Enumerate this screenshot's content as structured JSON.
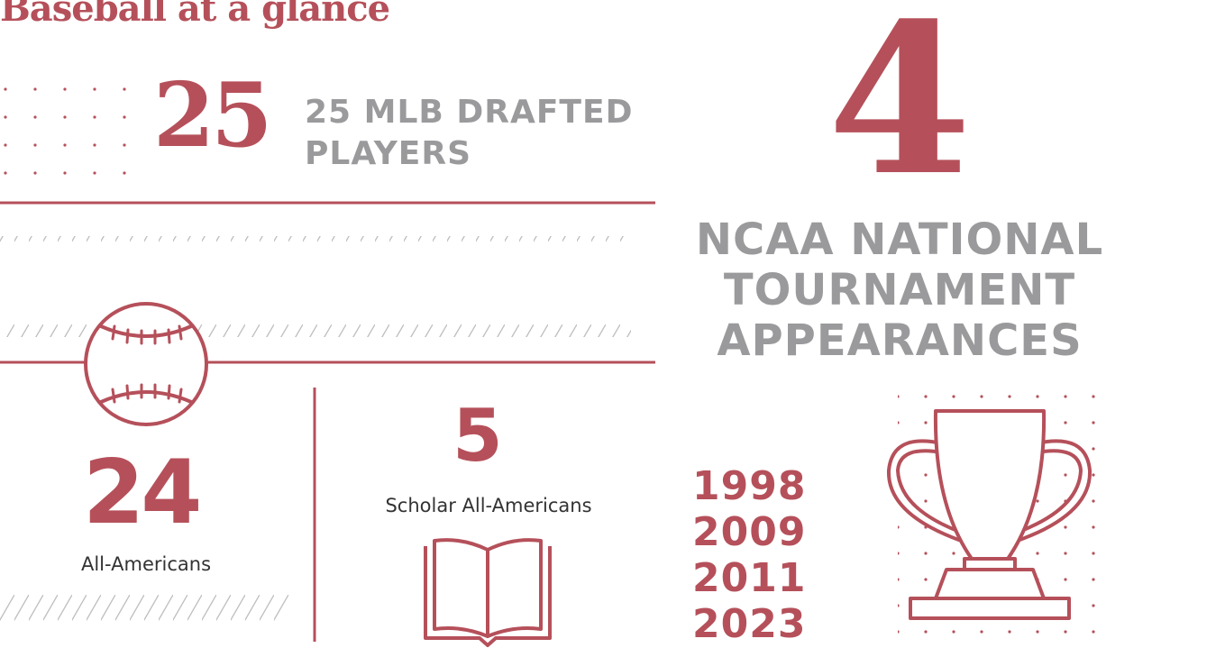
{
  "title": "Baseball at a glance",
  "stats": {
    "drafted": {
      "number": "25",
      "label_line1": "25 MLB DRAFTED",
      "label_line2": "PLAYERS"
    },
    "ncaa": {
      "number": "4",
      "label_line1": "NCAA NATIONAL",
      "label_line2": "TOURNAMENT",
      "label_line3": "APPEARANCES"
    },
    "all_americans": {
      "number": "24",
      "label": "All-Americans"
    },
    "scholar": {
      "number": "5",
      "label": "Scholar All-Americans"
    }
  },
  "years": [
    "1998",
    "2009",
    "2011",
    "2023"
  ],
  "colors": {
    "accent": "#b5505a",
    "gray": "#9a9a9c",
    "text": "#333333",
    "hatch": "#bdbdbd"
  },
  "icons": [
    "baseball-icon",
    "open-book-icon",
    "trophy-icon"
  ]
}
